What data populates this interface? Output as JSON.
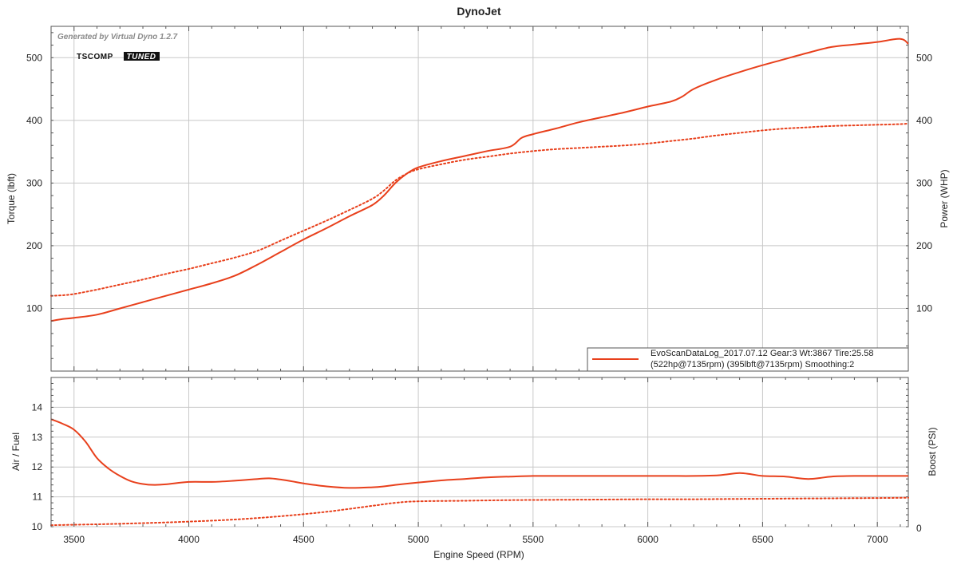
{
  "chart_data": [
    {
      "type": "line",
      "title": "DynoJet",
      "watermark": "Generated by Virtual Dyno 1.2.7",
      "logo": {
        "text": "TSCOMP",
        "badge": "TUNED"
      },
      "xlabel": "Engine Speed (RPM)",
      "ylabel": "Torque (lbft)",
      "ylabel_right": "Power (WHP)",
      "xlim": [
        3400,
        7135
      ],
      "ylim": [
        0,
        550
      ],
      "ylim_right": [
        0,
        550
      ],
      "x_ticks": [
        "3500",
        "4000",
        "4500",
        "5000",
        "5500",
        "6000",
        "6500",
        "7000"
      ],
      "y_ticks": [
        "100",
        "200",
        "300",
        "400",
        "500"
      ],
      "y_ticks_right": [
        "100",
        "200",
        "300",
        "400",
        "500"
      ],
      "grid": true,
      "legend": {
        "placement": "bottom-right",
        "line1": "EvoScanDataLog_2017.07.12 Gear:3 Wt:3867 Tire:25.58",
        "line2": "(522hp@7135rpm) (395lbft@7135rpm) Smoothing:2"
      },
      "colors": {
        "series": "#e8401c"
      },
      "series": [
        {
          "style": "solid",
          "x": [
            3400,
            3450,
            3500,
            3600,
            3700,
            3800,
            3900,
            4000,
            4100,
            4200,
            4300,
            4400,
            4500,
            4600,
            4700,
            4800,
            4850,
            4900,
            4950,
            5000,
            5100,
            5200,
            5300,
            5400,
            5450,
            5500,
            5600,
            5700,
            5800,
            5900,
            6000,
            6100,
            6150,
            6200,
            6300,
            6400,
            6500,
            6600,
            6700,
            6800,
            6900,
            7000,
            7100,
            7135
          ],
          "values": [
            80,
            83,
            85,
            90,
            100,
            110,
            120,
            130,
            140,
            152,
            170,
            190,
            210,
            228,
            247,
            265,
            280,
            300,
            315,
            325,
            335,
            343,
            351,
            358,
            372,
            378,
            387,
            397,
            405,
            413,
            422,
            430,
            438,
            450,
            465,
            477,
            488,
            498,
            508,
            517,
            521,
            525,
            530,
            522
          ]
        },
        {
          "style": "dotted",
          "x": [
            3400,
            3450,
            3500,
            3600,
            3700,
            3800,
            3900,
            4000,
            4100,
            4200,
            4300,
            4400,
            4500,
            4600,
            4700,
            4800,
            4850,
            4900,
            4950,
            5000,
            5100,
            5200,
            5300,
            5400,
            5500,
            5600,
            5700,
            5800,
            5900,
            6000,
            6100,
            6200,
            6300,
            6400,
            6500,
            6600,
            6700,
            6800,
            6900,
            7000,
            7100,
            7135
          ],
          "values": [
            120,
            121,
            123,
            130,
            138,
            146,
            155,
            163,
            172,
            181,
            192,
            208,
            224,
            240,
            257,
            275,
            288,
            304,
            315,
            322,
            330,
            337,
            342,
            347,
            351,
            354,
            356,
            358,
            360,
            363,
            367,
            371,
            376,
            380,
            384,
            387,
            389,
            391,
            392,
            393,
            394,
            395
          ]
        }
      ]
    },
    {
      "type": "line",
      "xlabel": "Engine Speed (RPM)",
      "ylabel": "Air / Fuel",
      "ylabel_right": "Boost (PSI)",
      "xlim": [
        3400,
        7135
      ],
      "ylim": [
        10,
        15
      ],
      "y_ticks": [
        "10",
        "11",
        "12",
        "13",
        "14"
      ],
      "y_ticks_right": [
        "0"
      ],
      "grid": true,
      "series": [
        {
          "style": "solid",
          "x": [
            3400,
            3450,
            3500,
            3550,
            3600,
            3650,
            3700,
            3750,
            3800,
            3850,
            3900,
            4000,
            4100,
            4200,
            4300,
            4350,
            4400,
            4450,
            4500,
            4600,
            4700,
            4800,
            4850,
            4900,
            5000,
            5100,
            5200,
            5300,
            5400,
            5500,
            5600,
            5700,
            5800,
            5900,
            6000,
            6100,
            6200,
            6300,
            6350,
            6400,
            6450,
            6500,
            6600,
            6650,
            6700,
            6750,
            6800,
            6900,
            7000,
            7100,
            7135
          ],
          "values": [
            13.6,
            13.45,
            13.25,
            12.85,
            12.3,
            11.95,
            11.7,
            11.52,
            11.43,
            11.4,
            11.42,
            11.5,
            11.5,
            11.54,
            11.6,
            11.62,
            11.58,
            11.52,
            11.45,
            11.35,
            11.3,
            11.32,
            11.35,
            11.4,
            11.48,
            11.55,
            11.6,
            11.65,
            11.68,
            11.7,
            11.7,
            11.7,
            11.7,
            11.7,
            11.7,
            11.7,
            11.7,
            11.72,
            11.76,
            11.8,
            11.76,
            11.7,
            11.68,
            11.63,
            11.6,
            11.63,
            11.68,
            11.7,
            11.7,
            11.7,
            11.7
          ]
        },
        {
          "style": "dotted",
          "axis": "right",
          "x": [
            3400,
            3600,
            3800,
            4000,
            4200,
            4400,
            4600,
            4800,
            4900,
            5000,
            5200,
            5400,
            5600,
            5800,
            6000,
            6200,
            6400,
            6600,
            6800,
            7000,
            7135
          ],
          "values": [
            10.05,
            10.08,
            10.12,
            10.17,
            10.24,
            10.35,
            10.5,
            10.7,
            10.8,
            10.85,
            10.87,
            10.89,
            10.9,
            10.91,
            10.92,
            10.92,
            10.93,
            10.94,
            10.95,
            10.96,
            10.97
          ]
        }
      ]
    }
  ]
}
